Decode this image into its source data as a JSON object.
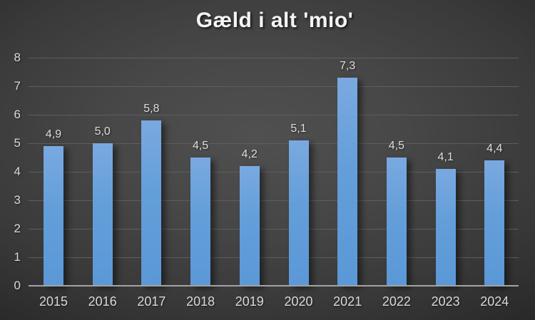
{
  "chart_data": {
    "type": "bar",
    "title": "Gæld i alt 'mio'",
    "categories": [
      "2015",
      "2016",
      "2017",
      "2018",
      "2019",
      "2020",
      "2021",
      "2022",
      "2023",
      "2024"
    ],
    "values": [
      4.9,
      5.0,
      5.8,
      4.5,
      4.2,
      5.1,
      7.3,
      4.5,
      4.1,
      4.4
    ],
    "value_labels": [
      "4,9",
      "5,0",
      "5,8",
      "4,5",
      "4,2",
      "5,1",
      "7,3",
      "4,5",
      "4,1",
      "4,4"
    ],
    "xlabel": "",
    "ylabel": "",
    "y_ticks": [
      "0",
      "1",
      "2",
      "3",
      "4",
      "5",
      "6",
      "7",
      "8"
    ],
    "ylim": [
      0,
      8
    ],
    "grid": true,
    "legend": false,
    "decimal_separator": ",",
    "colors": {
      "bar_top": "#7aa9e0",
      "bar_bottom": "#5b98d7",
      "gridline": "#5e5e5e",
      "axis_line": "#a3a3a3",
      "tick_label": "#d9d9d9",
      "data_label": "#dedede",
      "title": "#f4f4f4",
      "background_center": "#505050",
      "background_edge": "#1c1c1c"
    }
  }
}
